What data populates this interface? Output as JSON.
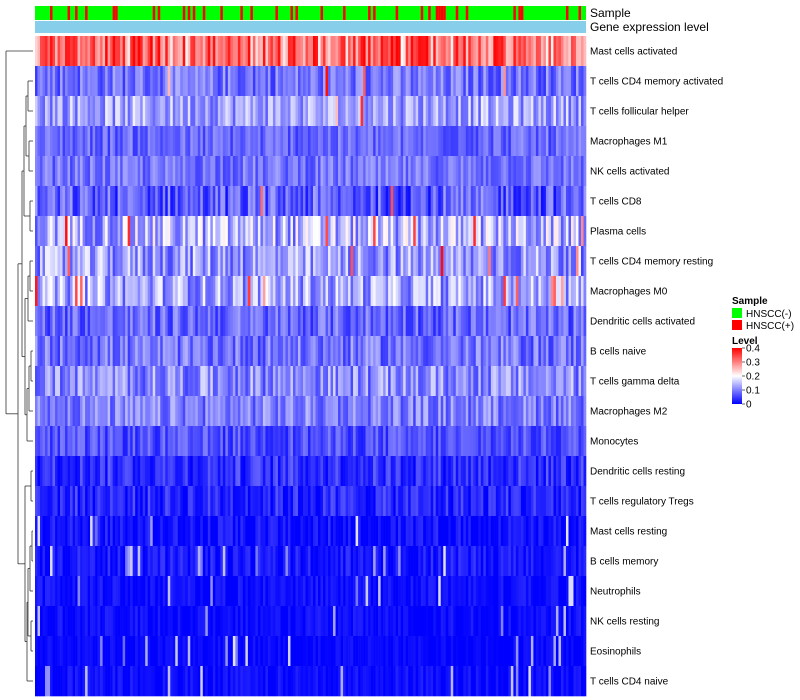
{
  "chart_data": {
    "type": "heatmap",
    "annotation_tracks": [
      {
        "name": "Sample",
        "type": "categorical",
        "values_description": "per-sample HNSCC status, mostly HNSCC(-) with scattered HNSCC(+)"
      },
      {
        "name": "Gene expression level",
        "type": "continuous",
        "color": "#87CEEB"
      }
    ],
    "rows": [
      {
        "name": "Mast cells activated",
        "mean": 0.3,
        "spread": 0.1,
        "hi_prob": 0.55
      },
      {
        "name": "T cells CD4 memory activated",
        "mean": 0.09,
        "spread": 0.05,
        "hi_prob": 0.02
      },
      {
        "name": "T cells follicular helper",
        "mean": 0.13,
        "spread": 0.06,
        "hi_prob": 0.01
      },
      {
        "name": "Macrophages M1",
        "mean": 0.08,
        "spread": 0.04,
        "hi_prob": 0.0
      },
      {
        "name": "NK cells activated",
        "mean": 0.09,
        "spread": 0.04,
        "hi_prob": 0.0
      },
      {
        "name": "T cells CD8",
        "mean": 0.07,
        "spread": 0.06,
        "hi_prob": 0.01
      },
      {
        "name": "Plasma cells",
        "mean": 0.14,
        "spread": 0.08,
        "hi_prob": 0.04
      },
      {
        "name": "T cells CD4 memory resting",
        "mean": 0.12,
        "spread": 0.07,
        "hi_prob": 0.02
      },
      {
        "name": "Macrophages M0",
        "mean": 0.13,
        "spread": 0.07,
        "hi_prob": 0.03
      },
      {
        "name": "Dendritic cells activated",
        "mean": 0.08,
        "spread": 0.05,
        "hi_prob": 0.0
      },
      {
        "name": "B cells naive",
        "mean": 0.09,
        "spread": 0.05,
        "hi_prob": 0.0
      },
      {
        "name": "T cells gamma delta",
        "mean": 0.11,
        "spread": 0.06,
        "hi_prob": 0.0
      },
      {
        "name": "Macrophages M2",
        "mean": 0.1,
        "spread": 0.05,
        "hi_prob": 0.0
      },
      {
        "name": "Monocytes",
        "mean": 0.06,
        "spread": 0.04,
        "hi_prob": 0.0
      },
      {
        "name": "Dendritic cells resting",
        "mean": 0.04,
        "spread": 0.04,
        "hi_prob": 0.0
      },
      {
        "name": "T cells regulatory  Tregs",
        "mean": 0.03,
        "spread": 0.04,
        "hi_prob": 0.0
      },
      {
        "name": "Mast cells resting",
        "mean": 0.01,
        "spread": 0.03,
        "hi_prob": 0.0
      },
      {
        "name": "B cells memory",
        "mean": 0.015,
        "spread": 0.03,
        "hi_prob": 0.0
      },
      {
        "name": "Neutrophils",
        "mean": 0.01,
        "spread": 0.02,
        "hi_prob": 0.0
      },
      {
        "name": "NK cells resting",
        "mean": 0.008,
        "spread": 0.02,
        "hi_prob": 0.0
      },
      {
        "name": "Eosinophils",
        "mean": 0.005,
        "spread": 0.015,
        "hi_prob": 0.0
      },
      {
        "name": "T cells CD4 naive",
        "mean": 0.008,
        "spread": 0.02,
        "hi_prob": 0.0
      }
    ],
    "n_samples": 220,
    "value_range": [
      0,
      0.4
    ],
    "color_scale": {
      "low": "#0000FF",
      "mid": "#FFFFFF",
      "high": "#FF0000",
      "mid_value": 0.2
    },
    "legend": {
      "sample_title": "Sample",
      "sample_entries": [
        {
          "label": "HNSCC(-)",
          "color": "#00FF00"
        },
        {
          "label": "HNSCC(+)",
          "color": "#FF0000"
        }
      ],
      "level_title": "Level",
      "level_ticks": [
        "0.4",
        "0.3",
        "0.2",
        "0.1",
        "0"
      ],
      "position": "right"
    },
    "dendrogram": "rows clustered (hierarchical), shown on left"
  }
}
